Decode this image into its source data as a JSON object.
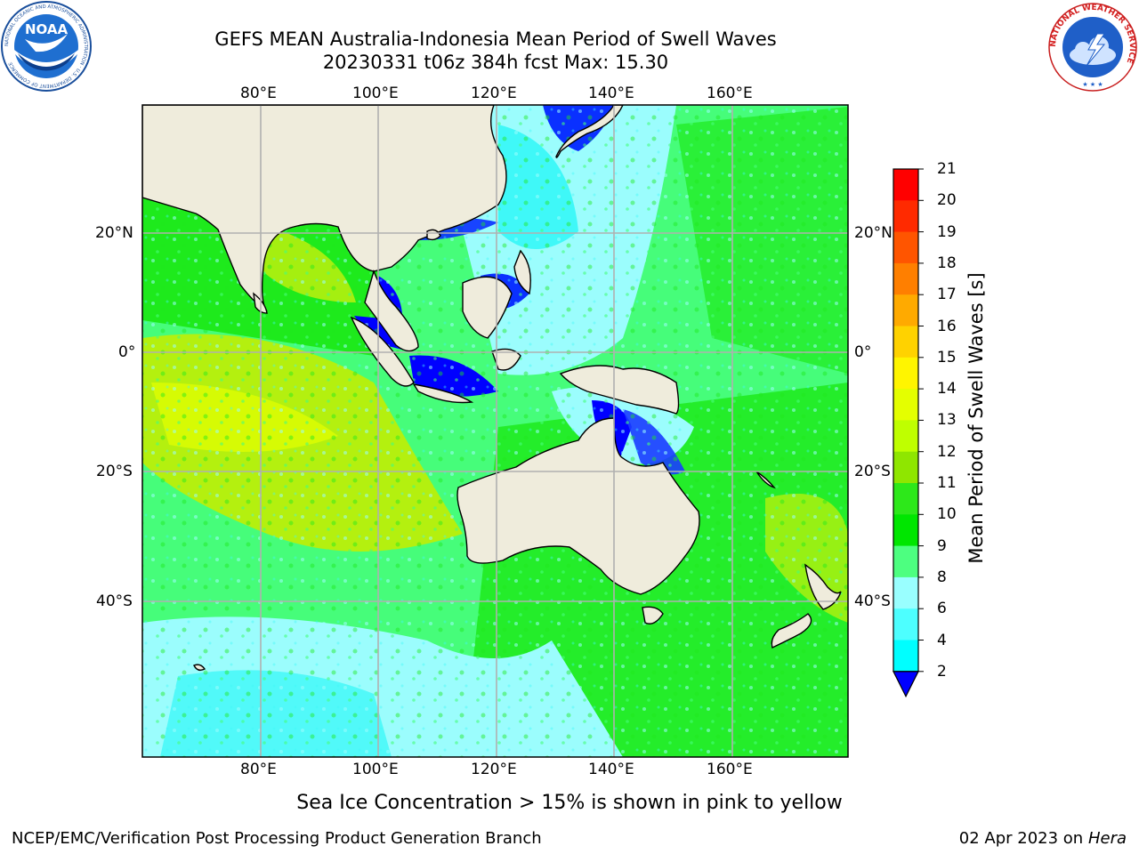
{
  "header": {
    "title_line1": "GEFS MEAN Australia-Indonesia Mean Period of Swell Waves",
    "title_line2": "20230331 t06z 384h fcst   Max: 15.30"
  },
  "logos": {
    "noaa_text": "NOAA",
    "noaa_ring_text": "NATIONAL OCEANIC AND ATMOSPHERIC ADMINISTRATION · U.S. DEPARTMENT OF COMMERCE",
    "nws_ring_text": "NATIONAL WEATHER SERVICE"
  },
  "map": {
    "lon_labels": [
      "80°E",
      "100°E",
      "120°E",
      "140°E",
      "160°E"
    ],
    "lat_labels": [
      "20°N",
      "0°",
      "20°S",
      "40°S"
    ],
    "background_colors": [
      "#46fd7a",
      "#1eea1c",
      "#9bfdfd",
      "#3ff8f8",
      "#b4f00f",
      "#d6fb04"
    ],
    "land_color": "#efecdc",
    "grid_color": "#b0b0b0"
  },
  "colorbar": {
    "label": "Mean Period of Swell Waves [s]",
    "ticks": [
      "21",
      "20",
      "19",
      "18",
      "17",
      "16",
      "15",
      "14",
      "13",
      "12",
      "11",
      "10",
      "9",
      "8",
      "6",
      "4",
      "2"
    ],
    "colors": [
      "#ff0000",
      "#ff2a00",
      "#ff5500",
      "#ff7f00",
      "#ffaa00",
      "#ffd200",
      "#fff500",
      "#e4ff00",
      "#bfff00",
      "#8fe600",
      "#2de81a",
      "#00e600",
      "#4dff80",
      "#99ffff",
      "#4dffff",
      "#00ffff",
      "#0080ff",
      "#0000ff"
    ]
  },
  "note": "Sea Ice Concentration > 15% is shown in pink to yellow",
  "footer": {
    "left": "NCEP/EMC/Verification Post Processing Product Generation Branch",
    "date": "02 Apr 2023 on ",
    "machine": "Hera"
  }
}
